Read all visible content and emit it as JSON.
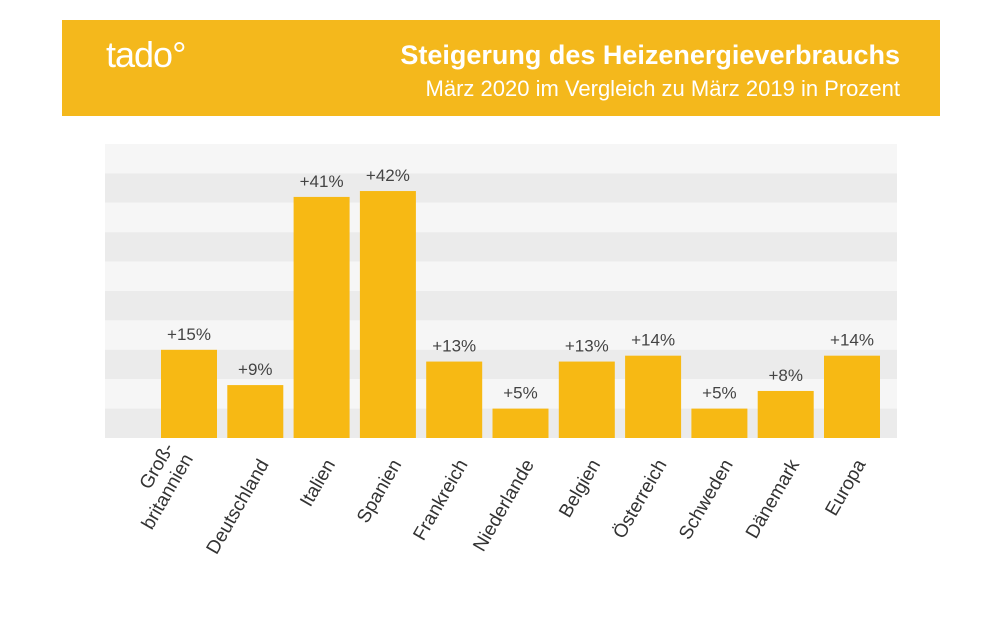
{
  "header": {
    "logo": "tado°",
    "title": "Steigerung des Heizenergieverbrauchs",
    "subtitle": "März 2020 im Vergleich zu März 2019 in Prozent"
  },
  "colors": {
    "banner": "#f4b81c",
    "bar": "#f7b914",
    "stripe_light": "#f6f6f6",
    "stripe_dark": "#ebebeb"
  },
  "chart_data": {
    "type": "bar",
    "title": "Steigerung des Heizenergieverbrauchs",
    "subtitle": "März 2020 im Vergleich zu März 2019 in Prozent",
    "xlabel": "",
    "ylabel": "",
    "ylim": [
      0,
      50
    ],
    "grid": "horizontal alternating bands",
    "categories": [
      [
        "Groß-",
        "britannien"
      ],
      [
        "Deutschland"
      ],
      [
        "Italien"
      ],
      [
        "Spanien"
      ],
      [
        "Frankreich"
      ],
      [
        "Niederlande"
      ],
      [
        "Belgien"
      ],
      [
        "Österreich"
      ],
      [
        "Schweden"
      ],
      [
        "Dänemark"
      ],
      [
        "Europa"
      ]
    ],
    "values": [
      15,
      9,
      41,
      42,
      13,
      5,
      13,
      14,
      5,
      8,
      14
    ],
    "labels": [
      "+15%",
      "+9%",
      "+41%",
      "+42%",
      "+13%",
      "+5%",
      "+13%",
      "+14%",
      "+5%",
      "+8%",
      "+14%"
    ]
  }
}
